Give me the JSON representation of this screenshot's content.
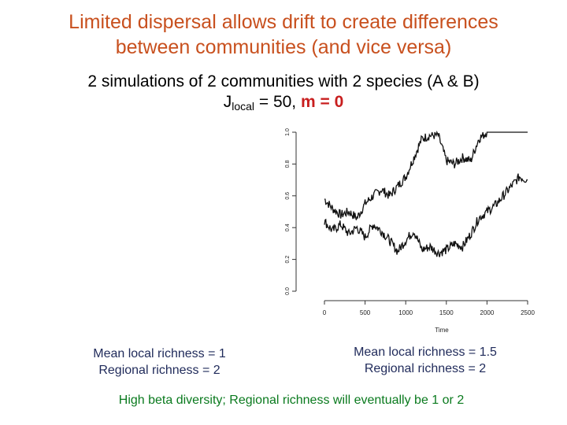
{
  "slide": {
    "title_line1": "Limited dispersal allows drift to create differences",
    "title_line2": "between communities (and vice versa)",
    "subtitle_line1": "2 simulations of 2 communities with 2 species (A & B)",
    "param_prefix": "J",
    "param_sub": "local",
    "param_mid": " = 50, ",
    "param_m": "m = 0",
    "left_caption_line1": "Mean local richness = 1",
    "left_caption_line2": "Regional richness = 2",
    "right_caption_line1": "Mean local richness = 1.5",
    "right_caption_line2": "Regional richness = 2",
    "footer": "High beta diversity; Regional richness will eventually be 1 or 2"
  },
  "chart_data": {
    "type": "line",
    "xlabel": "Time",
    "ylabel": "",
    "xlim": [
      0,
      2500
    ],
    "ylim": [
      0,
      1
    ],
    "x_ticks": [
      "0",
      "500",
      "1000",
      "1500",
      "2000",
      "2500"
    ],
    "y_ticks": [
      "0.0",
      "0.2",
      "0.4",
      "0.6",
      "0.8",
      "1.0"
    ],
    "series": [
      {
        "x": [
          0,
          100,
          200,
          300,
          400,
          500,
          600,
          700,
          800,
          900,
          1000,
          1100,
          1200,
          1300,
          1400,
          1500,
          1600,
          1700,
          1800,
          1900,
          2000,
          2100,
          2200,
          2300,
          2400,
          2500
        ],
        "values": [
          0.58,
          0.52,
          0.48,
          0.5,
          0.46,
          0.55,
          0.6,
          0.64,
          0.6,
          0.66,
          0.72,
          0.84,
          0.96,
          0.98,
          0.98,
          0.82,
          0.8,
          0.84,
          0.82,
          0.96,
          1.0,
          1.0,
          1.0,
          1.0,
          1.0,
          1.0
        ],
        "color": "#111111"
      },
      {
        "x": [
          0,
          100,
          200,
          300,
          400,
          500,
          600,
          700,
          800,
          900,
          1000,
          1100,
          1200,
          1300,
          1400,
          1500,
          1600,
          1700,
          1800,
          1900,
          2000,
          2100,
          2200,
          2300,
          2400,
          2500
        ],
        "values": [
          0.44,
          0.38,
          0.42,
          0.36,
          0.4,
          0.34,
          0.42,
          0.38,
          0.32,
          0.25,
          0.32,
          0.38,
          0.26,
          0.28,
          0.24,
          0.26,
          0.3,
          0.28,
          0.36,
          0.46,
          0.5,
          0.54,
          0.6,
          0.66,
          0.72,
          0.7
        ],
        "color": "#111111"
      }
    ]
  }
}
